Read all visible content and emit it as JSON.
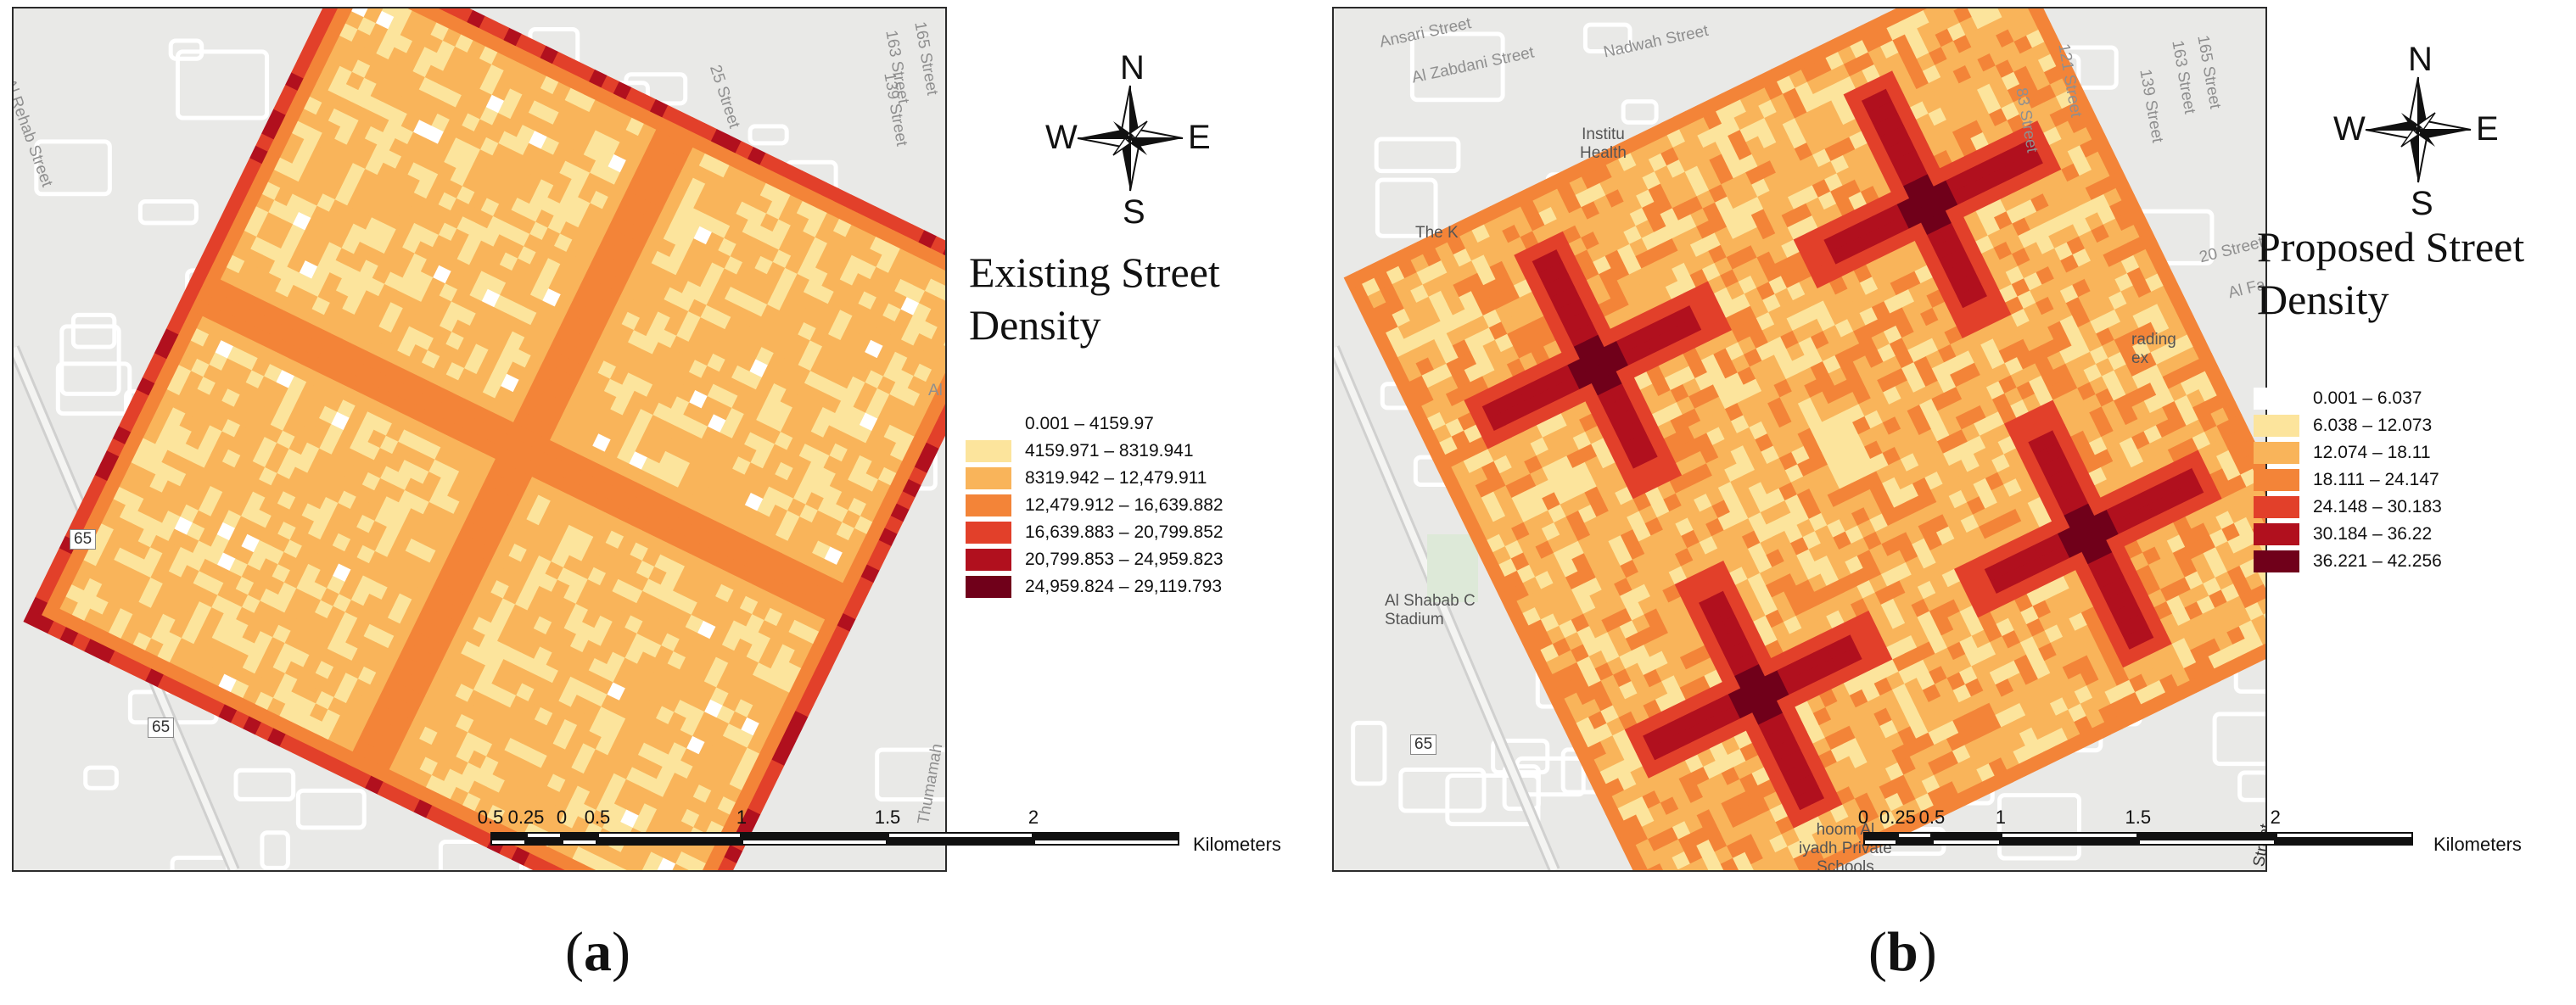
{
  "panels": [
    {
      "id": "a",
      "caption_open": "(",
      "caption_letter": "a",
      "caption_close": ")",
      "legend_title": [
        "Existing Street",
        "Density"
      ],
      "legend": [
        {
          "label": "0.001 – 4159.97",
          "color": "#ffffff"
        },
        {
          "label": "4159.971 – 8319.941",
          "color": "#fce49c"
        },
        {
          "label": "8319.942 – 12,479.911",
          "color": "#f9b45a"
        },
        {
          "label": "12,479.912 – 16,639.882",
          "color": "#f38438"
        },
        {
          "label": "16,639.883 – 20,799.852",
          "color": "#e2402a"
        },
        {
          "label": "20,799.853 – 24,959.823",
          "color": "#b1101e"
        },
        {
          "label": "24,959.824 – 29,119.793",
          "color": "#70001a"
        }
      ],
      "scalebar": {
        "ticks": [
          "0.5",
          "0.25",
          "0",
          "0.5",
          "1",
          "1.5",
          "2"
        ],
        "units": "Kilometers"
      },
      "compass": {
        "n": "N",
        "s": "S",
        "e": "E",
        "w": "W"
      },
      "streets": [
        "Al Rehab Street",
        "25 Street",
        "165 Street",
        "163 Street",
        "139 Street",
        "65",
        "65",
        "Thumamah",
        "Al"
      ]
    },
    {
      "id": "b",
      "caption_open": "(",
      "caption_letter": "b",
      "caption_close": ")",
      "legend_title": [
        "Proposed Street",
        "Density"
      ],
      "legend": [
        {
          "label": "0.001 – 6.037",
          "color": "#ffffff"
        },
        {
          "label": "6.038 – 12.073",
          "color": "#fce49c"
        },
        {
          "label": "12.074 – 18.11",
          "color": "#f9b45a"
        },
        {
          "label": "18.111 – 24.147",
          "color": "#f38438"
        },
        {
          "label": "24.148 – 30.183",
          "color": "#e2402a"
        },
        {
          "label": "30.184 – 36.22",
          "color": "#b1101e"
        },
        {
          "label": "36.221 – 42.256",
          "color": "#70001a"
        }
      ],
      "scalebar": {
        "ticks": [
          "0",
          "0.25",
          "0.5",
          "1",
          "1.5",
          "2"
        ],
        "units": "Kilometers"
      },
      "compass": {
        "n": "N",
        "s": "S",
        "e": "E",
        "w": "W"
      },
      "streets": [
        "Ansari Street",
        "Al Zabdani Street",
        "Nadwah Street",
        "121 Street",
        "139 Street",
        "165 Street",
        "163 Street",
        "83 Street",
        "20 Street",
        "Al Farsh Stre",
        "65",
        "Street"
      ],
      "pois": [
        "Institu\nHealth",
        "The K",
        "Al Shabab C\nStadium",
        "rading\nex",
        "hoom Al\niyadh Private\nSchools"
      ]
    }
  ]
}
